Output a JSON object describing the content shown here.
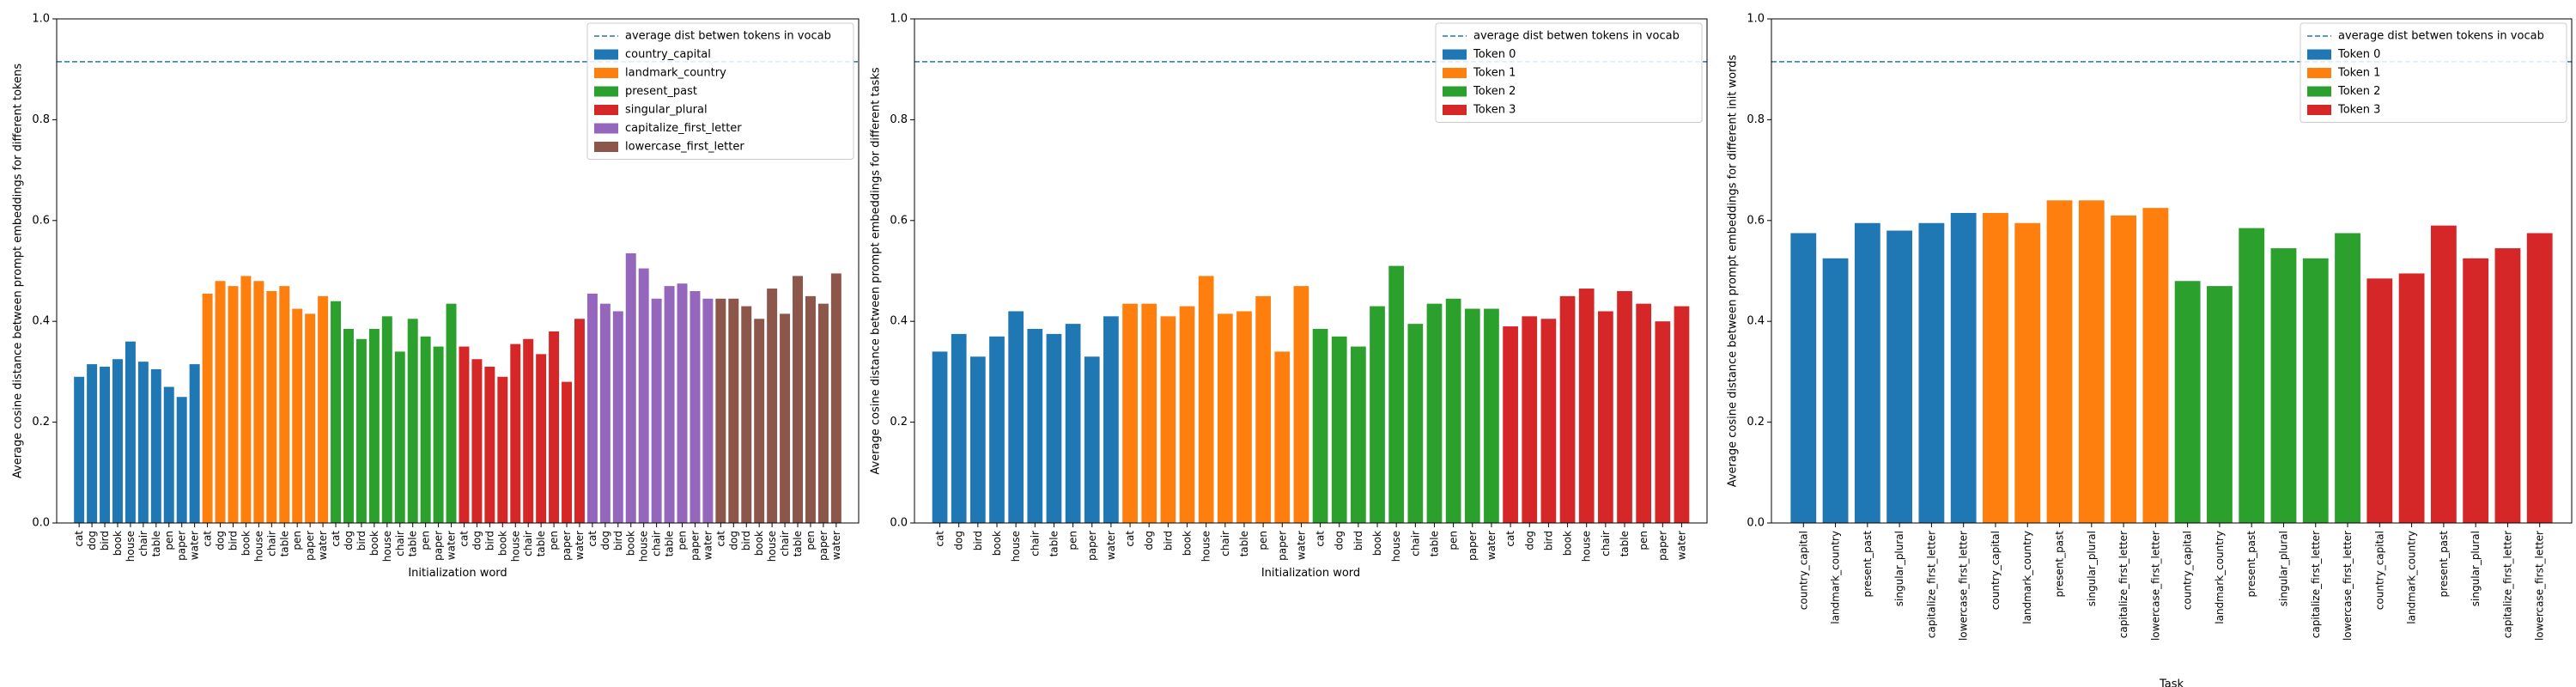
{
  "colors": {
    "blue": "#1f77b4",
    "orange": "#ff7f0e",
    "green": "#2ca02c",
    "red": "#d62728",
    "purple": "#9467bd",
    "brown": "#8c564b",
    "reference_line": "#1f77b4"
  },
  "chart_data": [
    {
      "type": "bar",
      "title": "",
      "xlabel": "Initialization word",
      "ylabel": "Average cosine distance between prompt embeddings for different tokens",
      "ylim": [
        0,
        1.0
      ],
      "yticks": [
        "0.0",
        "0.2",
        "0.4",
        "0.6",
        "0.8",
        "1.0"
      ],
      "legend_position": "top-right",
      "reference_line": {
        "label": "average dist betwen tokens in vocab",
        "value": 0.915,
        "style": "dashed"
      },
      "categories": [
        "cat",
        "dog",
        "bird",
        "book",
        "house",
        "chair",
        "table",
        "pen",
        "paper",
        "water"
      ],
      "series": [
        {
          "name": "country_capital",
          "color": "#1f77b4",
          "values": [
            0.29,
            0.315,
            0.31,
            0.325,
            0.36,
            0.32,
            0.305,
            0.27,
            0.25,
            0.315
          ]
        },
        {
          "name": "landmark_country",
          "color": "#ff7f0e",
          "values": [
            0.455,
            0.48,
            0.47,
            0.49,
            0.48,
            0.46,
            0.47,
            0.425,
            0.415,
            0.45
          ]
        },
        {
          "name": "present_past",
          "color": "#2ca02c",
          "values": [
            0.44,
            0.385,
            0.365,
            0.385,
            0.41,
            0.34,
            0.405,
            0.37,
            0.35,
            0.435
          ]
        },
        {
          "name": "singular_plural",
          "color": "#d62728",
          "values": [
            0.35,
            0.325,
            0.31,
            0.29,
            0.355,
            0.365,
            0.335,
            0.38,
            0.28,
            0.405
          ]
        },
        {
          "name": "capitalize_first_letter",
          "color": "#9467bd",
          "values": [
            0.455,
            0.435,
            0.42,
            0.535,
            0.505,
            0.445,
            0.47,
            0.475,
            0.46,
            0.445
          ]
        },
        {
          "name": "lowercase_first_letter",
          "color": "#8c564b",
          "values": [
            0.445,
            0.445,
            0.43,
            0.405,
            0.465,
            0.415,
            0.49,
            0.45,
            0.435,
            0.495
          ]
        }
      ]
    },
    {
      "type": "bar",
      "title": "",
      "xlabel": "Initialization word",
      "ylabel": "Average cosine distance between prompt embeddings for different tasks",
      "ylim": [
        0,
        1.0
      ],
      "yticks": [
        "0.0",
        "0.2",
        "0.4",
        "0.6",
        "0.8",
        "1.0"
      ],
      "legend_position": "top-right",
      "reference_line": {
        "label": "average dist betwen tokens in vocab",
        "value": 0.915,
        "style": "dashed"
      },
      "categories": [
        "cat",
        "dog",
        "bird",
        "book",
        "house",
        "chair",
        "table",
        "pen",
        "paper",
        "water"
      ],
      "series": [
        {
          "name": "Token 0",
          "color": "#1f77b4",
          "values": [
            0.34,
            0.375,
            0.33,
            0.37,
            0.42,
            0.385,
            0.375,
            0.395,
            0.33,
            0.41
          ]
        },
        {
          "name": "Token 1",
          "color": "#ff7f0e",
          "values": [
            0.435,
            0.435,
            0.41,
            0.43,
            0.49,
            0.415,
            0.42,
            0.45,
            0.34,
            0.47
          ]
        },
        {
          "name": "Token 2",
          "color": "#2ca02c",
          "values": [
            0.385,
            0.37,
            0.35,
            0.43,
            0.51,
            0.395,
            0.435,
            0.445,
            0.425,
            0.425
          ]
        },
        {
          "name": "Token 3",
          "color": "#d62728",
          "values": [
            0.39,
            0.41,
            0.405,
            0.45,
            0.465,
            0.42,
            0.46,
            0.435,
            0.4,
            0.43
          ]
        }
      ]
    },
    {
      "type": "bar",
      "title": "",
      "xlabel": "Task",
      "ylabel": "Average cosine distance between prompt embeddings for different init words",
      "ylim": [
        0,
        1.0
      ],
      "yticks": [
        "0.0",
        "0.2",
        "0.4",
        "0.6",
        "0.8",
        "1.0"
      ],
      "legend_position": "top-right",
      "reference_line": {
        "label": "average dist betwen tokens in vocab",
        "value": 0.915,
        "style": "dashed"
      },
      "categories": [
        "country_capital",
        "landmark_country",
        "present_past",
        "singular_plural",
        "capitalize_first_letter",
        "lowercase_first_letter"
      ],
      "series": [
        {
          "name": "Token 0",
          "color": "#1f77b4",
          "values": [
            0.575,
            0.525,
            0.595,
            0.58,
            0.595,
            0.615
          ]
        },
        {
          "name": "Token 1",
          "color": "#ff7f0e",
          "values": [
            0.615,
            0.595,
            0.64,
            0.64,
            0.61,
            0.625
          ]
        },
        {
          "name": "Token 2",
          "color": "#2ca02c",
          "values": [
            0.48,
            0.47,
            0.585,
            0.545,
            0.525,
            0.575
          ]
        },
        {
          "name": "Token 3",
          "color": "#d62728",
          "values": [
            0.485,
            0.495,
            0.59,
            0.525,
            0.545,
            0.575
          ]
        }
      ]
    }
  ]
}
